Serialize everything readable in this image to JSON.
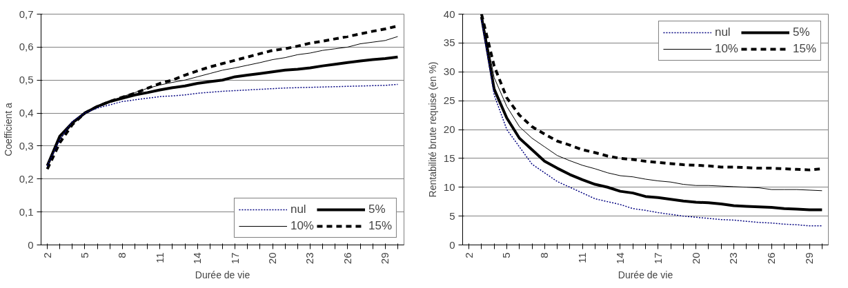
{
  "chart_data": [
    {
      "type": "line",
      "ylabel": "Coefficient a",
      "xlabel": "Durée de vie",
      "categories": [
        "2",
        null,
        null,
        "5",
        null,
        null,
        "8",
        null,
        null,
        "11",
        null,
        null,
        "14",
        null,
        null,
        "17",
        null,
        null,
        "20",
        null,
        null,
        "23",
        null,
        null,
        "26",
        null,
        null,
        "29",
        null
      ],
      "ylim": [
        0,
        0.7
      ],
      "yticks": [
        {
          "value": 0,
          "label": "0"
        },
        {
          "value": 0.1,
          "label": "0,1"
        },
        {
          "value": 0.2,
          "label": "0,2"
        },
        {
          "value": 0.3,
          "label": "0,3"
        },
        {
          "value": 0.4,
          "label": "0,4"
        },
        {
          "value": 0.5,
          "label": "0,5"
        },
        {
          "value": 0.6,
          "label": "0,6"
        },
        {
          "value": 0.7,
          "label": "0,7"
        }
      ],
      "grid": "y",
      "legend": "bottom right",
      "series": [
        {
          "name": "nul",
          "color": "#000080",
          "line_style": "dotted",
          "values": [
            0.24,
            0.32,
            0.375,
            0.4,
            0.415,
            0.425,
            0.435,
            0.44,
            0.445,
            0.45,
            0.452,
            0.455,
            0.46,
            0.463,
            0.466,
            0.468,
            0.47,
            0.472,
            0.474,
            0.476,
            0.477,
            0.478,
            0.479,
            0.48,
            0.481,
            0.482,
            0.483,
            0.484,
            0.487
          ]
        },
        {
          "name": "5%",
          "color": "#000000",
          "line_style": "solid",
          "values": [
            0.24,
            0.33,
            0.37,
            0.4,
            0.42,
            0.435,
            0.445,
            0.455,
            0.462,
            0.47,
            0.477,
            0.482,
            0.49,
            0.495,
            0.5,
            0.51,
            0.515,
            0.52,
            0.525,
            0.53,
            0.533,
            0.537,
            0.543,
            0.548,
            0.553,
            0.558,
            0.562,
            0.565,
            0.57
          ]
        },
        {
          "name": "10%",
          "color": "#000000",
          "line_style": "solid",
          "values": [
            0.24,
            0.32,
            0.365,
            0.4,
            0.42,
            0.435,
            0.45,
            0.462,
            0.475,
            0.485,
            0.493,
            0.5,
            0.51,
            0.52,
            0.53,
            0.537,
            0.545,
            0.553,
            0.562,
            0.568,
            0.577,
            0.582,
            0.59,
            0.595,
            0.6,
            0.61,
            0.615,
            0.62,
            0.632
          ]
        },
        {
          "name": "15%",
          "color": "#000000",
          "line_style": "dashed",
          "values": [
            0.23,
            0.31,
            0.365,
            0.4,
            0.42,
            0.435,
            0.448,
            0.46,
            0.475,
            0.49,
            0.5,
            0.515,
            0.528,
            0.54,
            0.55,
            0.56,
            0.57,
            0.58,
            0.59,
            0.595,
            0.603,
            0.612,
            0.618,
            0.625,
            0.632,
            0.64,
            0.648,
            0.655,
            0.664
          ]
        }
      ]
    },
    {
      "type": "line",
      "ylabel": "Rentabilité brute requise (en %)",
      "xlabel": "Durée de vie",
      "categories": [
        "2",
        null,
        null,
        "5",
        null,
        null,
        "8",
        null,
        null,
        "11",
        null,
        null,
        "14",
        null,
        null,
        "17",
        null,
        null,
        "20",
        null,
        null,
        "23",
        null,
        null,
        "26",
        null,
        null,
        "29",
        null
      ],
      "ylim": [
        0,
        40
      ],
      "yticks": [
        0,
        5,
        10,
        15,
        20,
        25,
        30,
        35,
        40
      ],
      "grid": "y",
      "legend": "top right",
      "series": [
        {
          "name": "nul",
          "color": "#000080",
          "line_style": "dotted",
          "values": [
            null,
            39,
            26,
            20,
            17,
            14,
            12.5,
            11,
            10,
            9,
            8,
            7.5,
            7,
            6.3,
            6,
            5.6,
            5.3,
            5,
            4.8,
            4.6,
            4.4,
            4.3,
            4.1,
            3.9,
            3.8,
            3.6,
            3.5,
            3.3,
            3.3
          ]
        },
        {
          "name": "5%",
          "color": "#000000",
          "line_style": "solid",
          "values": [
            null,
            39.5,
            27,
            22,
            18.5,
            16.5,
            14.5,
            13.3,
            12.2,
            11.3,
            10.5,
            10,
            9.3,
            9,
            8.4,
            8.2,
            7.9,
            7.6,
            7.4,
            7.3,
            7.1,
            6.8,
            6.7,
            6.6,
            6.5,
            6.3,
            6.2,
            6.1,
            6.1
          ]
        },
        {
          "name": "10%",
          "color": "#000000",
          "line_style": "solid",
          "values": [
            null,
            40,
            29,
            24,
            20.5,
            18.5,
            17,
            15.5,
            14.6,
            13.8,
            13.2,
            12.5,
            12,
            11.8,
            11.4,
            11.1,
            10.9,
            10.5,
            10.3,
            10.3,
            10.2,
            10.1,
            10,
            9.9,
            9.6,
            9.6,
            9.6,
            9.5,
            9.4
          ]
        },
        {
          "name": "15%",
          "color": "#000000",
          "line_style": "dashed",
          "values": [
            null,
            40,
            31,
            25.5,
            22.5,
            20.5,
            19.2,
            18,
            17.3,
            16.5,
            16,
            15.4,
            15,
            14.8,
            14.5,
            14.3,
            14.1,
            13.9,
            13.8,
            13.7,
            13.5,
            13.5,
            13.4,
            13.3,
            13.3,
            13.2,
            13.1,
            13,
            13.2
          ]
        }
      ]
    }
  ]
}
